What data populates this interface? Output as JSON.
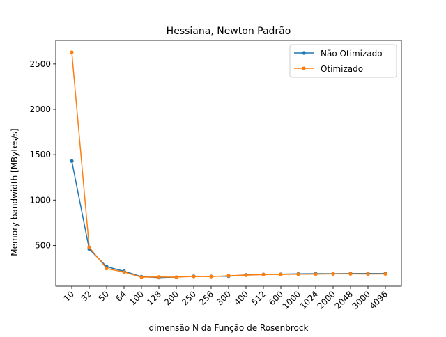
{
  "chart_data": {
    "type": "line",
    "title": "Hessiana, Newton Padrão",
    "xlabel": "dimensão N da Função de Rosenbrock",
    "ylabel": "Memory bandwidth [MBytes/s]",
    "categories": [
      "10",
      "32",
      "50",
      "64",
      "100",
      "128",
      "200",
      "250",
      "256",
      "300",
      "400",
      "512",
      "600",
      "1000",
      "1024",
      "2000",
      "2048",
      "3000",
      "4096"
    ],
    "yticks": [
      500,
      1000,
      1500,
      2000,
      2500
    ],
    "ylim": [
      50,
      2760
    ],
    "grid": false,
    "legend_position": "top-right",
    "series": [
      {
        "name": "Não Otimizado",
        "color": "#1f77b4",
        "values": [
          1430,
          460,
          265,
          215,
          155,
          145,
          150,
          160,
          158,
          160,
          175,
          180,
          182,
          186,
          188,
          188,
          190,
          190,
          190
        ]
      },
      {
        "name": "Otimizado",
        "color": "#ff7f0e",
        "values": [
          2630,
          480,
          245,
          205,
          150,
          152,
          150,
          157,
          156,
          165,
          172,
          178,
          180,
          182,
          183,
          185,
          186,
          184,
          185
        ]
      }
    ]
  }
}
